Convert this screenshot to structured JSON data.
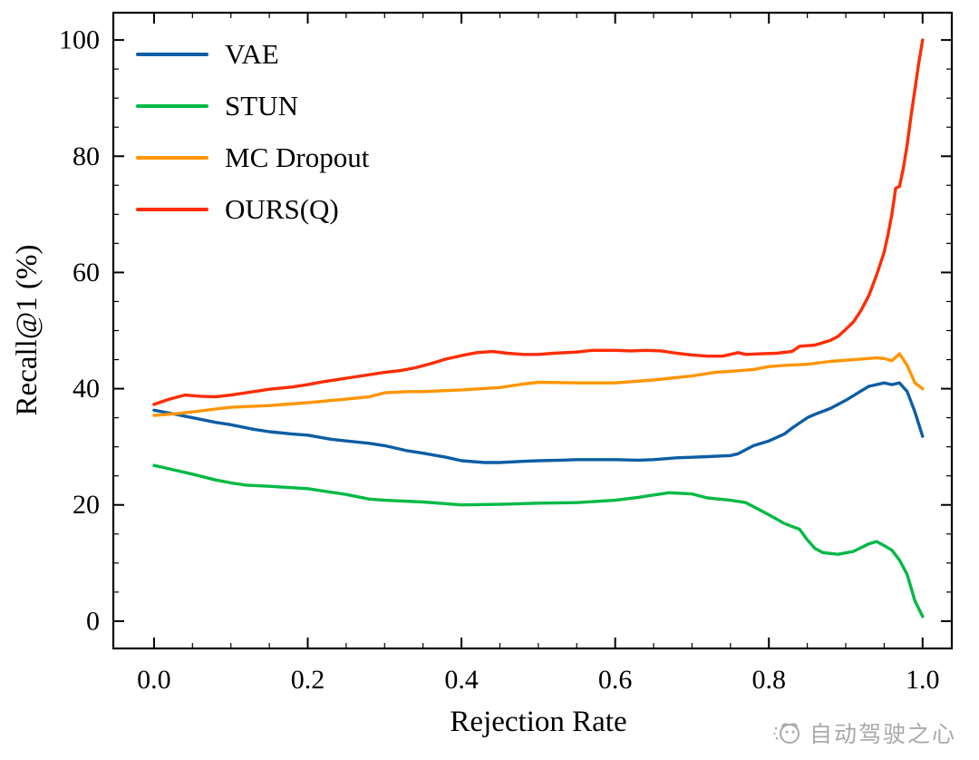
{
  "chart_data": {
    "type": "line",
    "title": "",
    "xlabel": "Rejection Rate",
    "ylabel": "Recall@1 (%)",
    "xlim": [
      -0.053,
      1.038
    ],
    "ylim": [
      -4.7,
      104.7
    ],
    "x_tick_labels": [
      "0.0",
      "0.2",
      "0.4",
      "0.6",
      "0.8",
      "1.0"
    ],
    "y_tick_labels": [
      "0",
      "20",
      "40",
      "60",
      "80",
      "100"
    ],
    "grid": false,
    "legend_position": "upper-left",
    "series": [
      {
        "name": "VAE",
        "color": "#0C5DA5",
        "x": [
          0,
          0.02,
          0.05,
          0.08,
          0.1,
          0.13,
          0.15,
          0.18,
          0.2,
          0.23,
          0.25,
          0.28,
          0.3,
          0.33,
          0.35,
          0.38,
          0.4,
          0.43,
          0.45,
          0.48,
          0.5,
          0.53,
          0.55,
          0.58,
          0.6,
          0.63,
          0.65,
          0.68,
          0.7,
          0.72,
          0.75,
          0.76,
          0.78,
          0.8,
          0.82,
          0.83,
          0.85,
          0.86,
          0.88,
          0.9,
          0.92,
          0.93,
          0.95,
          0.96,
          0.97,
          0.98,
          0.99,
          1.0
        ],
        "y": [
          36.3,
          35.8,
          35.0,
          34.2,
          33.8,
          33.0,
          32.6,
          32.2,
          32.0,
          31.3,
          31.0,
          30.6,
          30.2,
          29.3,
          28.9,
          28.2,
          27.6,
          27.3,
          27.3,
          27.5,
          27.6,
          27.7,
          27.8,
          27.8,
          27.8,
          27.7,
          27.8,
          28.1,
          28.2,
          28.3,
          28.5,
          28.8,
          30.2,
          31.0,
          32.2,
          33.2,
          35.0,
          35.6,
          36.6,
          38.0,
          39.6,
          40.4,
          41.0,
          40.7,
          41.0,
          39.5,
          36.0,
          31.8
        ]
      },
      {
        "name": "STUN",
        "color": "#00B945",
        "x": [
          0,
          0.02,
          0.05,
          0.08,
          0.1,
          0.12,
          0.15,
          0.2,
          0.22,
          0.25,
          0.28,
          0.3,
          0.35,
          0.38,
          0.4,
          0.45,
          0.5,
          0.55,
          0.6,
          0.63,
          0.65,
          0.67,
          0.7,
          0.72,
          0.75,
          0.77,
          0.79,
          0.8,
          0.82,
          0.84,
          0.85,
          0.86,
          0.87,
          0.89,
          0.91,
          0.93,
          0.94,
          0.95,
          0.96,
          0.97,
          0.98,
          0.99,
          1.0
        ],
        "y": [
          26.8,
          26.2,
          25.3,
          24.3,
          23.8,
          23.4,
          23.2,
          22.8,
          22.4,
          21.8,
          21.0,
          20.8,
          20.5,
          20.2,
          20.0,
          20.1,
          20.3,
          20.4,
          20.8,
          21.3,
          21.7,
          22.1,
          21.9,
          21.2,
          20.8,
          20.4,
          19.0,
          18.3,
          16.8,
          15.8,
          14.0,
          12.5,
          11.8,
          11.5,
          12.0,
          13.3,
          13.7,
          13.0,
          12.2,
          10.5,
          8.0,
          3.5,
          0.8
        ]
      },
      {
        "name": "MC Dropout",
        "color": "#FF9500",
        "x": [
          0,
          0.03,
          0.05,
          0.08,
          0.1,
          0.15,
          0.2,
          0.25,
          0.28,
          0.3,
          0.33,
          0.35,
          0.4,
          0.45,
          0.48,
          0.5,
          0.55,
          0.6,
          0.65,
          0.7,
          0.73,
          0.75,
          0.78,
          0.8,
          0.82,
          0.85,
          0.88,
          0.9,
          0.92,
          0.94,
          0.95,
          0.96,
          0.97,
          0.98,
          0.99,
          1.0
        ],
        "y": [
          35.4,
          35.7,
          36.0,
          36.5,
          36.8,
          37.1,
          37.6,
          38.2,
          38.6,
          39.3,
          39.5,
          39.5,
          39.8,
          40.2,
          40.8,
          41.1,
          41.0,
          41.0,
          41.5,
          42.2,
          42.8,
          43.0,
          43.3,
          43.8,
          44.0,
          44.2,
          44.7,
          44.9,
          45.1,
          45.3,
          45.2,
          44.8,
          46.0,
          44.0,
          41.0,
          40.0
        ]
      },
      {
        "name": "OURS(Q)",
        "color": "#FF2C00",
        "x": [
          0,
          0.02,
          0.04,
          0.06,
          0.08,
          0.1,
          0.12,
          0.15,
          0.18,
          0.2,
          0.22,
          0.25,
          0.28,
          0.3,
          0.32,
          0.34,
          0.36,
          0.38,
          0.4,
          0.42,
          0.44,
          0.46,
          0.48,
          0.5,
          0.52,
          0.55,
          0.57,
          0.6,
          0.62,
          0.64,
          0.66,
          0.68,
          0.7,
          0.72,
          0.74,
          0.76,
          0.77,
          0.79,
          0.81,
          0.83,
          0.84,
          0.86,
          0.88,
          0.89,
          0.9,
          0.91,
          0.92,
          0.93,
          0.94,
          0.95,
          0.955,
          0.96,
          0.965,
          0.97,
          0.975,
          0.98,
          0.985,
          0.99,
          0.995,
          1.0
        ],
        "y": [
          37.3,
          38.2,
          38.9,
          38.7,
          38.6,
          38.9,
          39.3,
          39.9,
          40.3,
          40.7,
          41.2,
          41.8,
          42.4,
          42.8,
          43.1,
          43.6,
          44.3,
          45.1,
          45.7,
          46.2,
          46.4,
          46.1,
          45.9,
          45.9,
          46.1,
          46.3,
          46.6,
          46.6,
          46.5,
          46.6,
          46.5,
          46.1,
          45.8,
          45.6,
          45.6,
          46.2,
          45.9,
          46.0,
          46.1,
          46.4,
          47.3,
          47.5,
          48.3,
          49.0,
          50.2,
          51.5,
          53.5,
          56.0,
          59.5,
          63.5,
          66.5,
          70.0,
          74.5,
          74.8,
          78.0,
          82.0,
          87.0,
          91.5,
          96.0,
          100.0
        ]
      }
    ]
  },
  "watermark": {
    "text": "自动驾驶之心"
  }
}
